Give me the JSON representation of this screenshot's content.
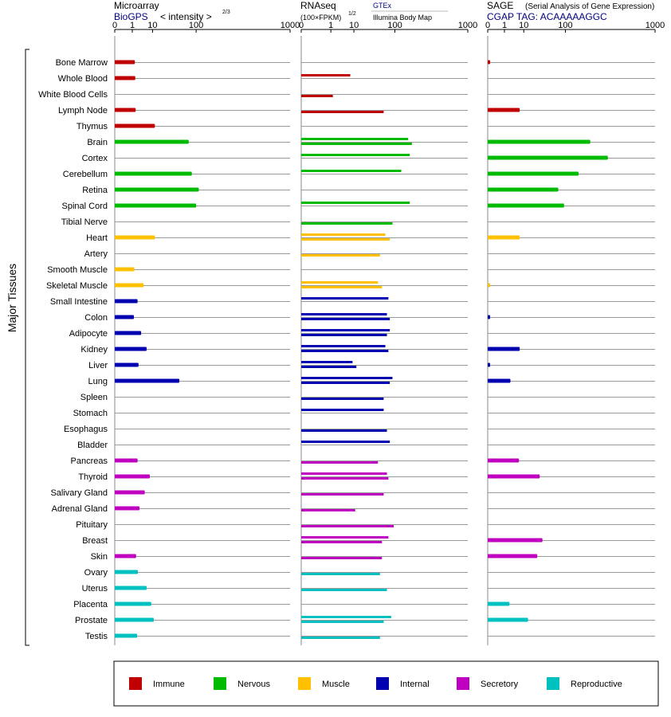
{
  "chart_data": {
    "type": "bar",
    "side_label": "Major Tissues",
    "categories": [
      "Bone Marrow",
      "Whole Blood",
      "White Blood Cells",
      "Lymph Node",
      "Thymus",
      "Brain",
      "Cortex",
      "Cerebellum",
      "Retina",
      "Spinal Cord",
      "Tibial Nerve",
      "Heart",
      "Artery",
      "Smooth Muscle",
      "Skeletal Muscle",
      "Small Intestine",
      "Colon",
      "Adipocyte",
      "Kidney",
      "Liver",
      "Lung",
      "Spleen",
      "Stomach",
      "Esophagus",
      "Bladder",
      "Pancreas",
      "Thyroid",
      "Salivary Gland",
      "Adrenal Gland",
      "Pituitary",
      "Breast",
      "Skin",
      "Ovary",
      "Uterus",
      "Placenta",
      "Prostate",
      "Testis"
    ],
    "groups": [
      "Immune",
      "Immune",
      "Immune",
      "Immune",
      "Immune",
      "Nervous",
      "Nervous",
      "Nervous",
      "Nervous",
      "Nervous",
      "Nervous",
      "Muscle",
      "Muscle",
      "Muscle",
      "Muscle",
      "Internal",
      "Internal",
      "Internal",
      "Internal",
      "Internal",
      "Internal",
      "Internal",
      "Internal",
      "Internal",
      "Internal",
      "Secretory",
      "Secretory",
      "Secretory",
      "Secretory",
      "Secretory",
      "Secretory",
      "Secretory",
      "Reproductive",
      "Reproductive",
      "Reproductive",
      "Reproductive",
      "Reproductive"
    ],
    "group_colors": {
      "Immune": "#c00000",
      "Nervous": "#00bb00",
      "Muscle": "#ffc000",
      "Internal": "#0000b0",
      "Secretory": "#c000c0",
      "Reproductive": "#00c0c0"
    },
    "legend": [
      "Immune",
      "Nervous",
      "Muscle",
      "Internal",
      "Secretory",
      "Reproductive"
    ],
    "axis_ticks": [
      "0",
      "1",
      "10",
      "100",
      "1000"
    ],
    "axis_tick_values": [
      0,
      1,
      10,
      100,
      1000
    ],
    "panels": [
      {
        "id": "microarray",
        "title": "Microarray",
        "source": "BioGPS",
        "subtitle": "< intensity >",
        "exponent": "2/3",
        "xscale": "power 1/3",
        "xlim": [
          0,
          1000
        ],
        "style": "single",
        "values": [
          1.5,
          1.6,
          null,
          1.7,
          12,
          75,
          null,
          85,
          110,
          100,
          null,
          12,
          null,
          1.4,
          4.5,
          2.2,
          1.3,
          3.4,
          6,
          2.5,
          50,
          null,
          null,
          null,
          null,
          2.2,
          8,
          5,
          2.8,
          null,
          null,
          1.8,
          2.3,
          6,
          9,
          11,
          2.1
        ]
      },
      {
        "id": "rnaseq",
        "title": "RNAseq",
        "subtitle": "(100×FPKM)",
        "exponent": "1/2",
        "legend_gtex": "GTEx",
        "legend_ibm": "Illumina Body Map",
        "xscale": "power 1/4",
        "xlim": [
          0,
          1000
        ],
        "style": "double",
        "values_gtex": [
          null,
          7.5,
          null,
          null,
          null,
          170,
          180,
          130,
          null,
          180,
          null,
          65,
          null,
          null,
          45,
          75,
          70,
          80,
          65,
          9,
          90,
          null,
          60,
          null,
          80,
          null,
          70,
          null,
          null,
          null,
          75,
          null,
          null,
          null,
          null,
          85,
          null
        ],
        "values_ibm": [
          null,
          null,
          1.3,
          60,
          null,
          195,
          null,
          null,
          null,
          null,
          90,
          80,
          50,
          null,
          55,
          null,
          80,
          70,
          75,
          12,
          80,
          60,
          null,
          70,
          null,
          45,
          75,
          60,
          11,
          95,
          55,
          55,
          50,
          70,
          null,
          60,
          50
        ]
      },
      {
        "id": "sage",
        "title": "SAGE",
        "subtitle": "(Serial Analysis of Gene Expression)",
        "tag": "CGAP TAG: ACAAAAAGGC",
        "xscale": "power 1/3",
        "xlim": [
          0,
          1000
        ],
        "style": "single",
        "values": [
          0.003,
          null,
          null,
          7,
          null,
          230,
          370,
          160,
          75,
          95,
          null,
          7,
          null,
          null,
          0.003,
          null,
          0.003,
          null,
          7,
          0.003,
          2.5,
          null,
          null,
          null,
          null,
          6.5,
          30,
          null,
          null,
          null,
          35,
          26,
          null,
          null,
          2.2,
          14,
          null
        ]
      }
    ]
  }
}
